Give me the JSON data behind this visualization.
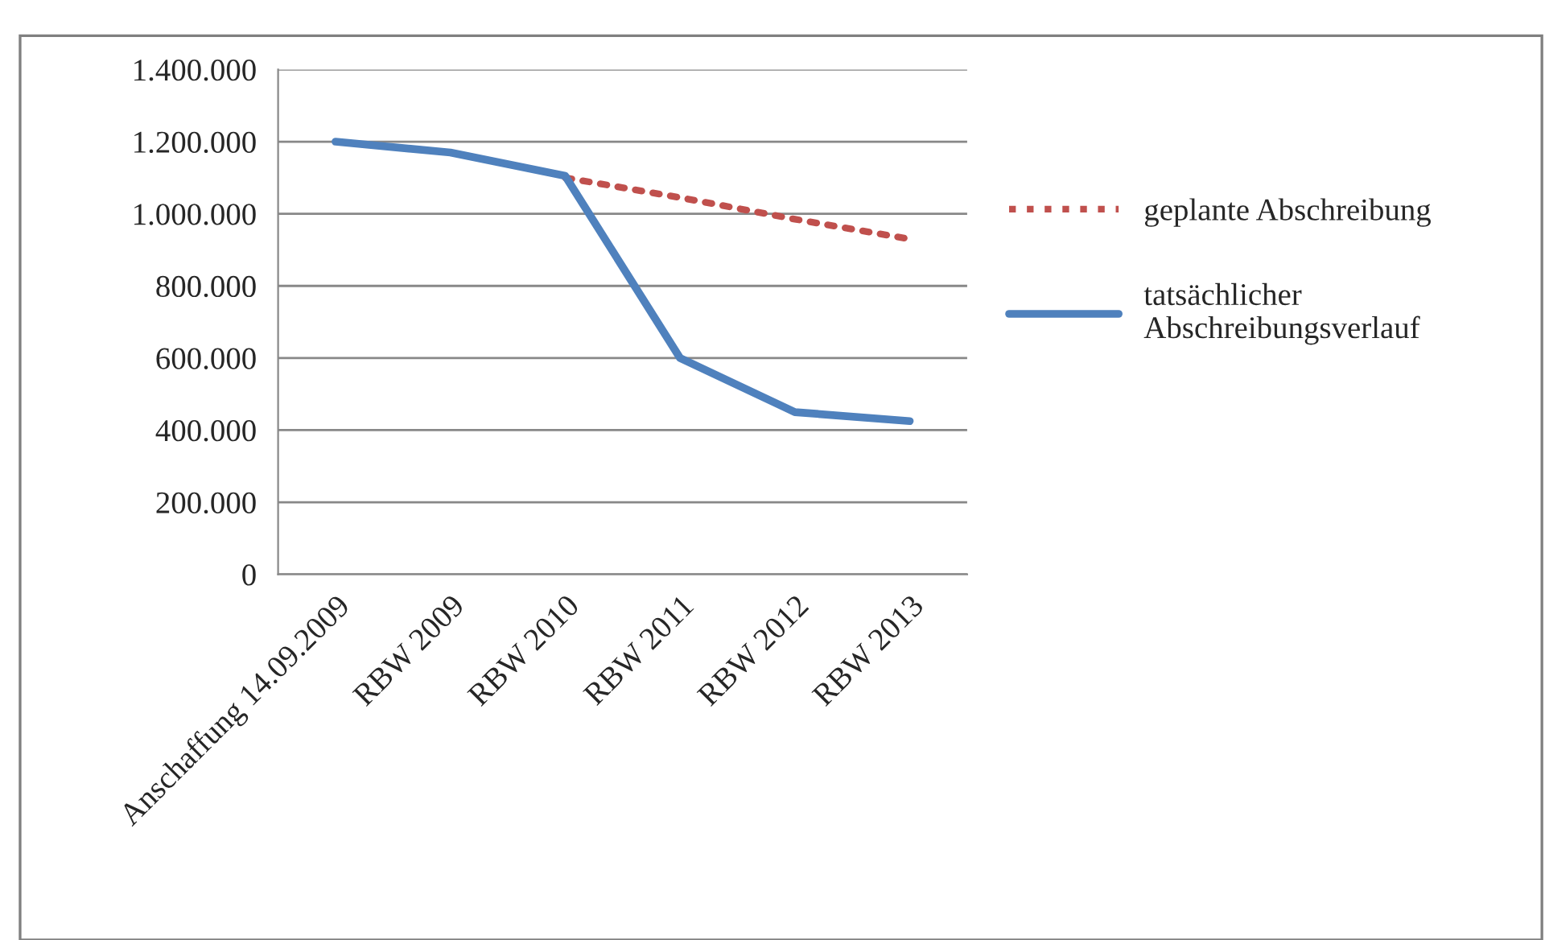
{
  "chart_data": {
    "type": "line",
    "categories": [
      "Anschaffung 14.09.2009",
      "RBW 2009",
      "RBW 2010",
      "RBW 2011",
      "RBW 2012",
      "RBW 2013"
    ],
    "series": [
      {
        "name": "geplante Abschreibung",
        "color": "#c0504d",
        "line_style": "dotted",
        "values": [
          null,
          null,
          1100000,
          1045000,
          985000,
          930000
        ]
      },
      {
        "name": "tatsächlicher Abschreibungsverlauf",
        "color": "#4f81bd",
        "line_style": "solid",
        "values": [
          1200000,
          1170000,
          1105000,
          600000,
          450000,
          425000
        ]
      }
    ],
    "ylim": [
      0,
      1400000
    ],
    "yticks": [
      0,
      {
        "value": 200000,
        "label": "200.000"
      },
      {
        "value": 400000,
        "label": "400.000"
      },
      {
        "value": 600000,
        "label": "600.000"
      },
      {
        "value": 800000,
        "label": "800.000"
      },
      {
        "value": 1000000,
        "label": "1.000.000"
      },
      {
        "value": 1200000,
        "label": "1.200.000"
      },
      {
        "value": 1400000,
        "label": "1.400.000"
      }
    ],
    "grid": "y",
    "legend": "right",
    "marker": "none"
  }
}
